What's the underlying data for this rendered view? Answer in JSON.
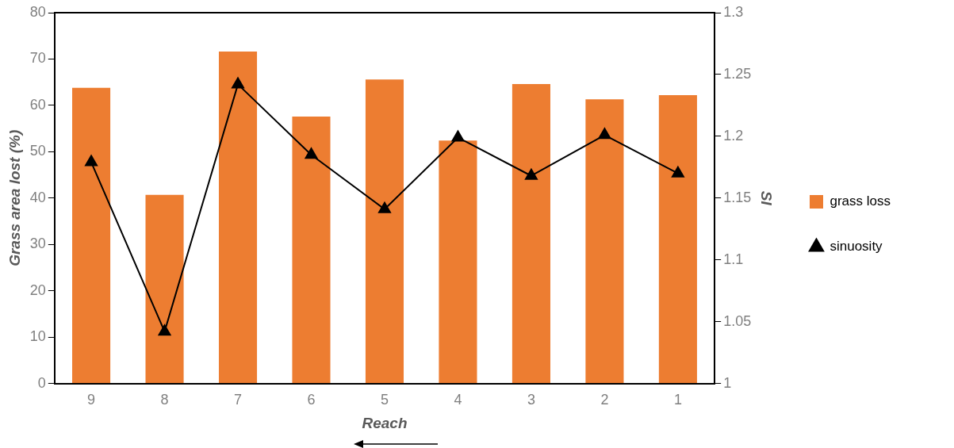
{
  "chart_data": {
    "type": "bar",
    "xlabel": "Reach",
    "ylabel": "Grass area lost (%)",
    "y2label": "SI",
    "categories": [
      "9",
      "8",
      "7",
      "6",
      "5",
      "4",
      "3",
      "2",
      "1"
    ],
    "series": [
      {
        "name": "grass loss",
        "color": "#ed7d31",
        "values": [
          63.8,
          40.7,
          71.6,
          57.6,
          65.6,
          52.4,
          64.6,
          61.3,
          62.2
        ]
      },
      {
        "name": "sinuosity",
        "type": "line",
        "axis": "y2",
        "color": "#000000",
        "marker": "triangle",
        "values": [
          1.179,
          1.042,
          1.242,
          1.185,
          1.141,
          1.199,
          1.168,
          1.201,
          1.17
        ]
      }
    ],
    "ylim": [
      0,
      80
    ],
    "yticks": [
      0,
      10,
      20,
      30,
      40,
      50,
      60,
      70,
      80
    ],
    "y2lim": [
      1,
      1.3
    ],
    "y2ticks": [
      1,
      1.05,
      1.1,
      1.15,
      1.2,
      1.25,
      1.3
    ],
    "grid": false,
    "legend": "right"
  }
}
